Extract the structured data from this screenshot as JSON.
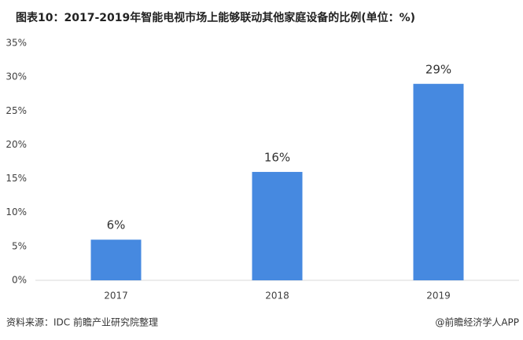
{
  "chart_data": {
    "type": "bar",
    "title": "图表10：2017-2019年智能电视市场上能够联动其他家庭设备的比例(单位：%)",
    "categories": [
      "2017",
      "2018",
      "2019"
    ],
    "values": [
      6,
      16,
      29
    ],
    "value_labels": [
      "6%",
      "16%",
      "29%"
    ],
    "color": "#4689e0",
    "ylim": [
      0,
      35
    ],
    "yticks": [
      {
        "value": 0,
        "label": "0%"
      },
      {
        "value": 5,
        "label": "5%"
      },
      {
        "value": 10,
        "label": "10%"
      },
      {
        "value": 15,
        "label": "15%"
      },
      {
        "value": 20,
        "label": "20%"
      },
      {
        "value": 25,
        "label": "25%"
      },
      {
        "value": 30,
        "label": "30%"
      },
      {
        "value": 35,
        "label": "35%"
      }
    ],
    "grid": false,
    "source": "资料来源：IDC 前瞻产业研究院整理",
    "credit": "@前瞻经济学人APP"
  }
}
